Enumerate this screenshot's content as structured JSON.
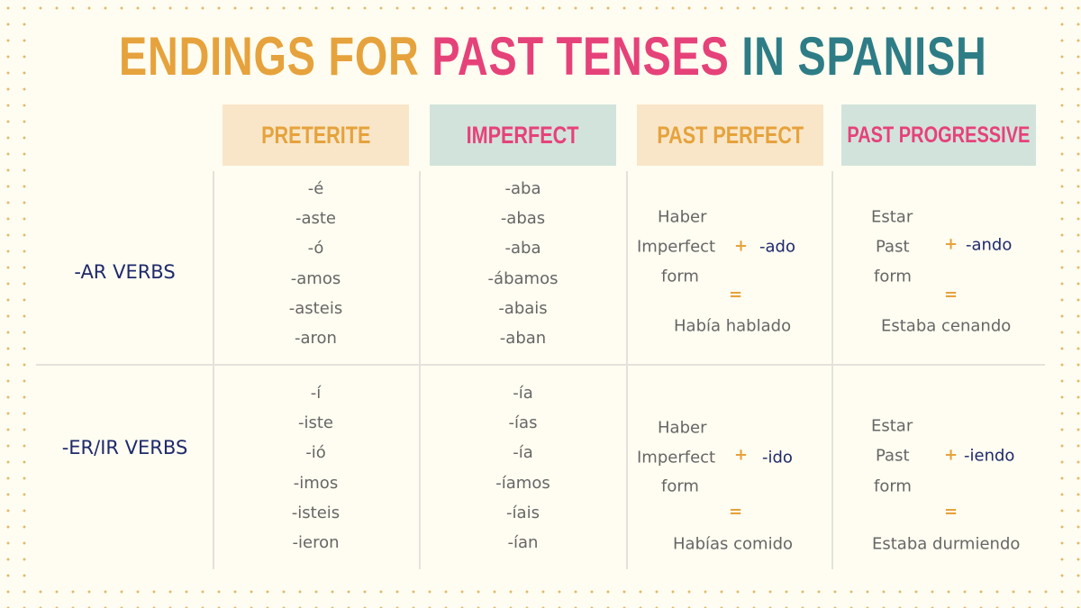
{
  "title": {
    "part1": "ENDINGS FOR",
    "part2": "PAST TENSES",
    "part3": "IN SPANISH"
  },
  "colors": {
    "orange": "#e6a23c",
    "pink": "#e6427a",
    "teal": "#2e7d86",
    "navy": "#1f2a6b",
    "peach": "#f9e6c8",
    "mint": "#d2e3dc"
  },
  "headers": [
    "PRETERITE",
    "IMPERFECT",
    "PAST PERFECT",
    "PAST PROGRESSIVE"
  ],
  "rows": [
    {
      "label": "-AR VERBS",
      "preterite": [
        "-é",
        "-aste",
        "-ó",
        "-amos",
        "-asteis",
        "-aron"
      ],
      "imperfect": [
        "-aba",
        "-abas",
        "-aba",
        "-ábamos",
        "-abais",
        "-aban"
      ],
      "past_perfect": {
        "aux": "Haber",
        "aux2": "Imperfect",
        "aux3": "form",
        "plus": "+",
        "ending": "-ado",
        "equals": "=",
        "example": "Había hablado"
      },
      "past_progressive": {
        "aux": "Estar",
        "aux2": "Past",
        "aux3": "form",
        "plus": "+",
        "ending": "-ando",
        "equals": "=",
        "example": "Estaba cenando"
      }
    },
    {
      "label": "-ER/IR VERBS",
      "preterite": [
        "-í",
        "-iste",
        "-ió",
        "-imos",
        "-isteis",
        "-ieron"
      ],
      "imperfect": [
        "-ía",
        "-ías",
        "-ía",
        "-íamos",
        "-íais",
        "-ían"
      ],
      "past_perfect": {
        "aux": "Haber",
        "aux2": "Imperfect",
        "aux3": "form",
        "plus": "+",
        "ending": "-ido",
        "equals": "=",
        "example": "Habías comido"
      },
      "past_progressive": {
        "aux": "Estar",
        "aux2": "Past",
        "aux3": "form",
        "plus": "+",
        "ending": "-iendo",
        "equals": "=",
        "example": "Estaba durmiendo"
      }
    }
  ]
}
